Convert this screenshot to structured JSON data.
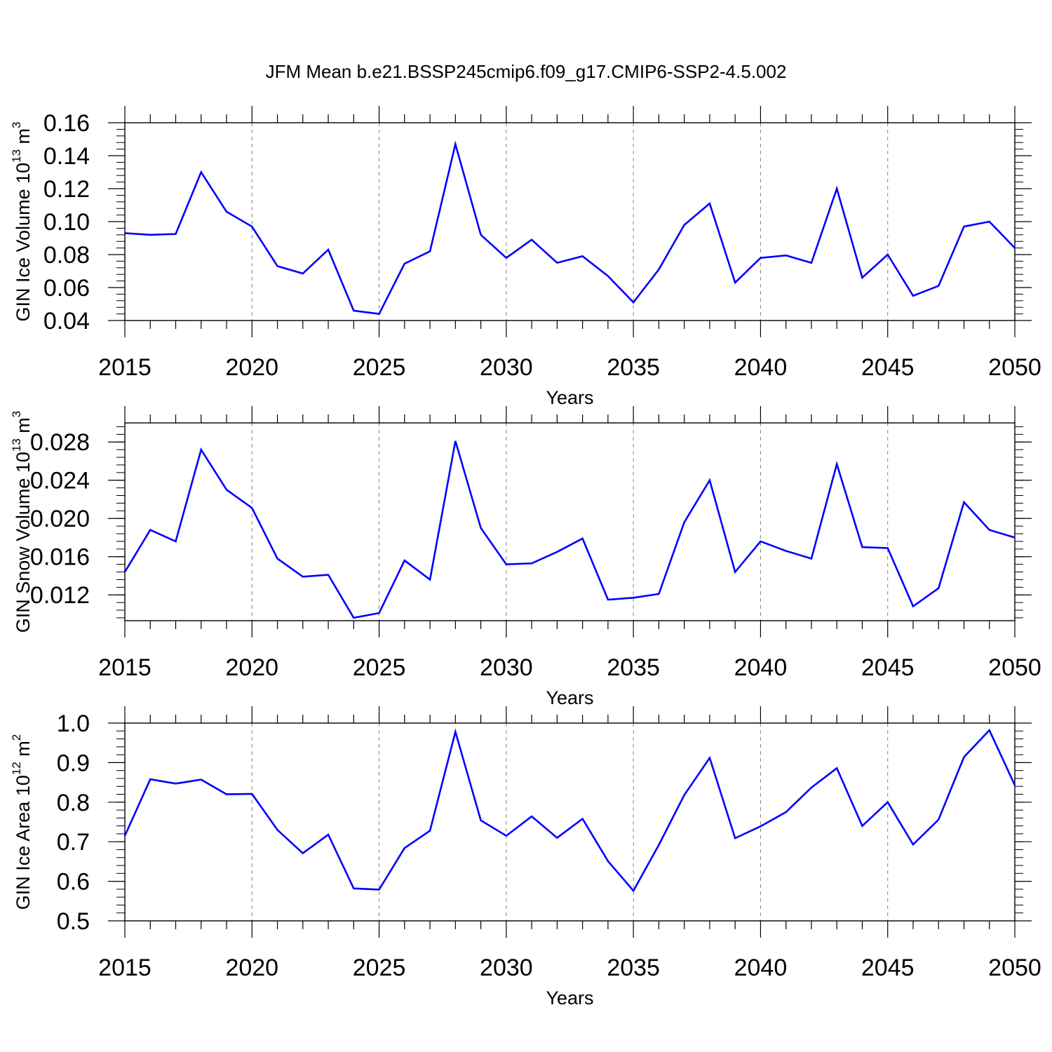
{
  "title": "JFM Mean b.e21.BSSP245cmip6.f09_g17.CMIP6-SSP2-4.5.002",
  "colors": {
    "line": "#0000ff",
    "axis": "#000000",
    "grid": "#808080"
  },
  "chart_data": [
    {
      "type": "line",
      "name": "ice-volume",
      "ylabel_main": "GIN Ice Volume 10",
      "ylabel_exp": "13",
      "ylabel_unit": " m",
      "ylabel_unit_exp": "3",
      "xlabel": "Years",
      "xlim": [
        2015,
        2050
      ],
      "ylim": [
        0.04,
        0.16
      ],
      "yticks": [
        0.04,
        0.06,
        0.08,
        0.1,
        0.12,
        0.14,
        0.16
      ],
      "ytick_labels": [
        "0.04",
        "0.06",
        "0.08",
        "0.10",
        "0.12",
        "0.14",
        "0.16"
      ],
      "yminor_step": 0.004,
      "xticks": [
        2015,
        2020,
        2025,
        2030,
        2035,
        2040,
        2045,
        2050
      ],
      "xtick_labels": [
        "2015",
        "2020",
        "2025",
        "2030",
        "2035",
        "2040",
        "2045",
        "2050"
      ],
      "x": [
        2015,
        2016,
        2017,
        2018,
        2019,
        2020,
        2021,
        2022,
        2023,
        2024,
        2025,
        2026,
        2027,
        2028,
        2029,
        2030,
        2031,
        2032,
        2033,
        2034,
        2035,
        2036,
        2037,
        2038,
        2039,
        2040,
        2041,
        2042,
        2043,
        2044,
        2045,
        2046,
        2047,
        2048,
        2049,
        2050
      ],
      "values": [
        0.093,
        0.092,
        0.0925,
        0.13,
        0.106,
        0.097,
        0.073,
        0.0685,
        0.083,
        0.046,
        0.044,
        0.0745,
        0.082,
        0.147,
        0.092,
        0.078,
        0.089,
        0.075,
        0.079,
        0.067,
        0.051,
        0.071,
        0.098,
        0.111,
        0.063,
        0.078,
        0.0795,
        0.075,
        0.12,
        0.066,
        0.08,
        0.055,
        0.061,
        0.097,
        0.1,
        0.084
      ]
    },
    {
      "type": "line",
      "name": "snow-volume",
      "ylabel_main": "GIN Snow Volume 10",
      "ylabel_exp": "13",
      "ylabel_unit": " m",
      "ylabel_unit_exp": "3",
      "xlabel": "Years",
      "xlim": [
        2015,
        2050
      ],
      "ylim": [
        0.0093,
        0.03
      ],
      "yticks": [
        0.012,
        0.016,
        0.02,
        0.024,
        0.028
      ],
      "ytick_labels": [
        "0.012",
        "0.016",
        "0.020",
        "0.024",
        "0.028"
      ],
      "yminor_step": 0.0008,
      "xticks": [
        2015,
        2020,
        2025,
        2030,
        2035,
        2040,
        2045,
        2050
      ],
      "xtick_labels": [
        "2015",
        "2020",
        "2025",
        "2030",
        "2035",
        "2040",
        "2045",
        "2050"
      ],
      "x": [
        2015,
        2016,
        2017,
        2018,
        2019,
        2020,
        2021,
        2022,
        2023,
        2024,
        2025,
        2026,
        2027,
        2028,
        2029,
        2030,
        2031,
        2032,
        2033,
        2034,
        2035,
        2036,
        2037,
        2038,
        2039,
        2040,
        2041,
        2042,
        2043,
        2044,
        2045,
        2046,
        2047,
        2048,
        2049,
        2050
      ],
      "values": [
        0.0144,
        0.0188,
        0.0176,
        0.0272,
        0.023,
        0.0211,
        0.0158,
        0.0139,
        0.0141,
        0.0096,
        0.0101,
        0.0156,
        0.0136,
        0.0281,
        0.019,
        0.0152,
        0.0153,
        0.0165,
        0.0179,
        0.0115,
        0.0117,
        0.0121,
        0.0196,
        0.024,
        0.0144,
        0.0176,
        0.0166,
        0.0158,
        0.0257,
        0.017,
        0.0169,
        0.0108,
        0.0127,
        0.0217,
        0.0188,
        0.018
      ]
    },
    {
      "type": "line",
      "name": "ice-area",
      "ylabel_main": "GIN Ice Area 10",
      "ylabel_exp": "12",
      "ylabel_unit": " m",
      "ylabel_unit_exp": "2",
      "xlabel": "Years",
      "xlim": [
        2015,
        2050
      ],
      "ylim": [
        0.5,
        1.0
      ],
      "yticks": [
        0.5,
        0.6,
        0.7,
        0.8,
        0.9,
        1.0
      ],
      "ytick_labels": [
        "0.5",
        "0.6",
        "0.7",
        "0.8",
        "0.9",
        "1.0"
      ],
      "yminor_step": 0.02,
      "xticks": [
        2015,
        2020,
        2025,
        2030,
        2035,
        2040,
        2045,
        2050
      ],
      "xtick_labels": [
        "2015",
        "2020",
        "2025",
        "2030",
        "2035",
        "2040",
        "2045",
        "2050"
      ],
      "x": [
        2015,
        2016,
        2017,
        2018,
        2019,
        2020,
        2021,
        2022,
        2023,
        2024,
        2025,
        2026,
        2027,
        2028,
        2029,
        2030,
        2031,
        2032,
        2033,
        2034,
        2035,
        2036,
        2037,
        2038,
        2039,
        2040,
        2041,
        2042,
        2043,
        2044,
        2045,
        2046,
        2047,
        2048,
        2049,
        2050
      ],
      "values": [
        0.715,
        0.858,
        0.847,
        0.857,
        0.82,
        0.821,
        0.73,
        0.671,
        0.718,
        0.582,
        0.579,
        0.684,
        0.728,
        0.978,
        0.754,
        0.715,
        0.764,
        0.71,
        0.758,
        0.651,
        0.576,
        0.692,
        0.818,
        0.912,
        0.709,
        0.739,
        0.775,
        0.837,
        0.886,
        0.74,
        0.8,
        0.693,
        0.756,
        0.914,
        0.982,
        0.843
      ]
    }
  ]
}
